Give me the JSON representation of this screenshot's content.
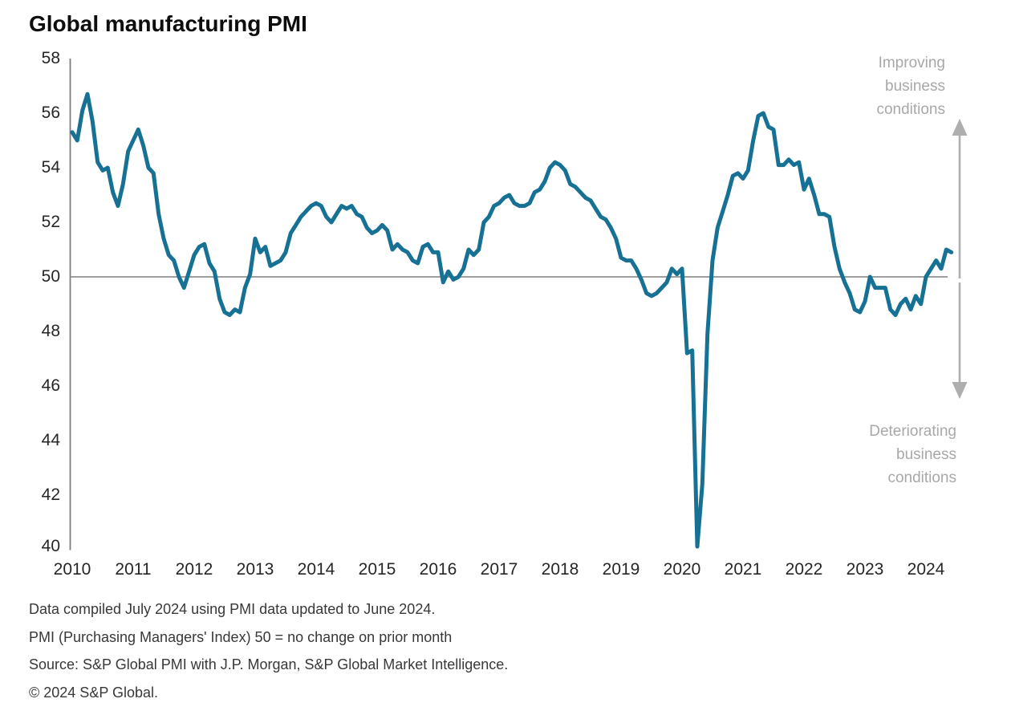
{
  "page": {
    "background": "#ffffff"
  },
  "header": {
    "title": "Global manufacturing PMI"
  },
  "chart_data": {
    "type": "line",
    "title": "Global manufacturing PMI",
    "frequency": "monthly",
    "x_start": "2010-01",
    "x_end": "2024-06",
    "ylim": [
      40,
      58
    ],
    "yticks": [
      58,
      56,
      54,
      52,
      50,
      48,
      46,
      44,
      42,
      40
    ],
    "year_ticks": [
      "2010",
      "2011",
      "2012",
      "2013",
      "2014",
      "2015",
      "2016",
      "2017",
      "2018",
      "2019",
      "2020",
      "2021",
      "2022",
      "2023",
      "2024"
    ],
    "reference_line": 50,
    "grid": "none",
    "legend": "none",
    "series": [
      {
        "name": "Global manufacturing PMI",
        "color": "#177194",
        "values": [
          55.3,
          55.0,
          56.1,
          56.7,
          55.7,
          54.2,
          53.9,
          54.0,
          53.1,
          52.6,
          53.4,
          54.6,
          55.0,
          55.4,
          54.8,
          54.0,
          53.8,
          52.3,
          51.4,
          50.8,
          50.6,
          50.0,
          49.6,
          50.2,
          50.8,
          51.1,
          51.2,
          50.5,
          50.2,
          49.2,
          48.7,
          48.6,
          48.8,
          48.7,
          49.6,
          50.1,
          51.4,
          50.9,
          51.1,
          50.4,
          50.5,
          50.6,
          50.9,
          51.6,
          51.9,
          52.2,
          52.4,
          52.6,
          52.7,
          52.6,
          52.2,
          52.0,
          52.3,
          52.6,
          52.5,
          52.6,
          52.3,
          52.2,
          51.8,
          51.6,
          51.7,
          51.9,
          51.7,
          51.0,
          51.2,
          51.0,
          50.9,
          50.6,
          50.5,
          51.1,
          51.2,
          50.9,
          50.9,
          49.8,
          50.2,
          49.9,
          50.0,
          50.3,
          51.0,
          50.8,
          51.0,
          52.0,
          52.2,
          52.6,
          52.7,
          52.9,
          53.0,
          52.7,
          52.6,
          52.6,
          52.7,
          53.1,
          53.2,
          53.5,
          54.0,
          54.2,
          54.1,
          53.9,
          53.4,
          53.3,
          53.1,
          52.9,
          52.8,
          52.5,
          52.2,
          52.1,
          51.8,
          51.4,
          50.7,
          50.6,
          50.6,
          50.3,
          49.9,
          49.4,
          49.3,
          49.4,
          49.6,
          49.8,
          50.3,
          50.1,
          50.3,
          47.2,
          47.3,
          39.8,
          42.4,
          47.9,
          50.6,
          51.8,
          52.4,
          53.0,
          53.7,
          53.8,
          53.6,
          53.9,
          55.0,
          55.9,
          56.0,
          55.5,
          55.4,
          54.1,
          54.1,
          54.3,
          54.1,
          54.2,
          53.2,
          53.6,
          53.0,
          52.3,
          52.3,
          52.2,
          51.1,
          50.3,
          49.8,
          49.4,
          48.8,
          48.7,
          49.1,
          50.0,
          49.6,
          49.6,
          49.6,
          48.8,
          48.6,
          49.0,
          49.2,
          48.8,
          49.3,
          49.0,
          50.0,
          50.3,
          50.6,
          50.3,
          51.0,
          50.9
        ]
      }
    ]
  },
  "annotations": {
    "improving": "Improving business conditions",
    "deteriorating": "Deteriorating business conditions",
    "text_color": "#a8a8a8",
    "arrow_color": "#aeaeae"
  },
  "axis_colors": {
    "axis_line": "#7d7d7d",
    "reference_line": "#909090",
    "tick_text": "#262626"
  },
  "footer": {
    "line1": "Data compiled July 2024 using PMI data updated to June 2024.",
    "line2": "PMI (Purchasing Managers' Index) 50 = no change on prior month",
    "line3": "Source: S&P Global PMI with J.P. Morgan, S&P Global Market Intelligence.",
    "line4": "© 2024 S&P Global."
  }
}
